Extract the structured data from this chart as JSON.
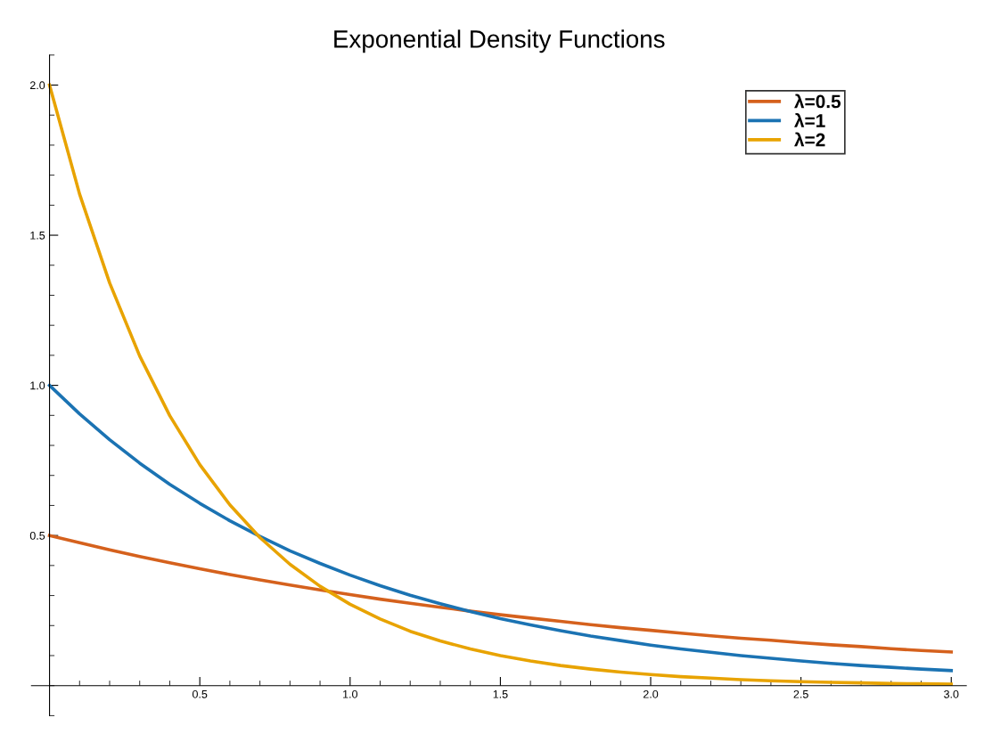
{
  "chart_data": {
    "type": "line",
    "title": "Exponential Density Functions",
    "x": [
      0,
      0.1,
      0.2,
      0.3,
      0.4,
      0.5,
      0.6,
      0.7,
      0.8,
      0.9,
      1.0,
      1.1,
      1.2,
      1.3,
      1.4,
      1.5,
      1.6,
      1.7,
      1.8,
      1.9,
      2.0,
      2.1,
      2.2,
      2.3,
      2.4,
      2.5,
      2.6,
      2.7,
      2.8,
      2.9,
      3.0
    ],
    "series": [
      {
        "name": "λ=0.5",
        "color": "#d5611d",
        "values": [
          0.5,
          0.476,
          0.452,
          0.43,
          0.409,
          0.389,
          0.37,
          0.352,
          0.335,
          0.319,
          0.303,
          0.288,
          0.274,
          0.261,
          0.248,
          0.236,
          0.225,
          0.214,
          0.203,
          0.193,
          0.184,
          0.175,
          0.166,
          0.158,
          0.151,
          0.143,
          0.136,
          0.13,
          0.123,
          0.117,
          0.112
        ]
      },
      {
        "name": "λ=1",
        "color": "#1b73b3",
        "values": [
          1,
          0.905,
          0.819,
          0.741,
          0.67,
          0.607,
          0.549,
          0.497,
          0.449,
          0.407,
          0.368,
          0.333,
          0.301,
          0.273,
          0.247,
          0.223,
          0.202,
          0.183,
          0.165,
          0.15,
          0.135,
          0.122,
          0.111,
          0.1,
          0.091,
          0.082,
          0.074,
          0.067,
          0.061,
          0.055,
          0.05
        ]
      },
      {
        "name": "λ=2",
        "color": "#e8a300",
        "values": [
          2,
          1.637,
          1.341,
          1.098,
          0.899,
          0.736,
          0.602,
          0.493,
          0.404,
          0.331,
          0.271,
          0.222,
          0.181,
          0.149,
          0.122,
          0.1,
          0.082,
          0.067,
          0.055,
          0.045,
          0.037,
          0.03,
          0.025,
          0.02,
          0.016,
          0.013,
          0.011,
          0.009,
          0.007,
          0.006,
          0.005
        ]
      }
    ],
    "xlim": [
      -0.06,
      3.05
    ],
    "ylim": [
      -0.1,
      2.1
    ],
    "xticks": [
      0.5,
      {
        "value": 1,
        "label": "1.0"
      },
      1.5,
      {
        "value": 2,
        "label": "2.0"
      },
      2.5,
      {
        "value": 3,
        "label": "3.0"
      }
    ],
    "yticks": [
      0.5,
      {
        "value": 1,
        "label": "1.0"
      },
      1.5,
      {
        "value": 2,
        "label": "2.0"
      }
    ],
    "legend": "top right",
    "grid": false,
    "line_style": "solid"
  }
}
